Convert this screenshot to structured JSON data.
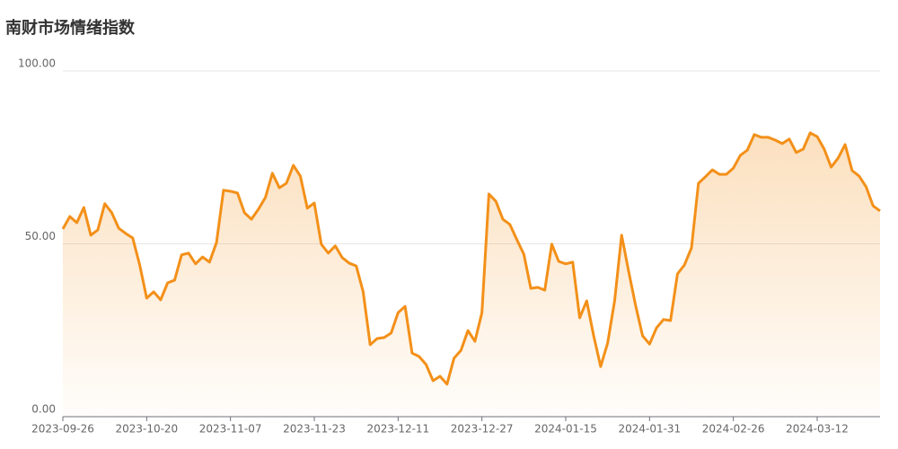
{
  "chart_data": {
    "type": "line",
    "title": "南财市场情绪指数",
    "categories": [
      "2023-09-26",
      null,
      null,
      null,
      null,
      null,
      null,
      null,
      null,
      null,
      null,
      null,
      "2023-10-20",
      null,
      null,
      null,
      null,
      null,
      null,
      null,
      null,
      null,
      null,
      null,
      "2023-11-07",
      null,
      null,
      null,
      null,
      null,
      null,
      null,
      null,
      null,
      null,
      null,
      "2023-11-23",
      null,
      null,
      null,
      null,
      null,
      null,
      null,
      null,
      null,
      null,
      null,
      "2023-12-11",
      null,
      null,
      null,
      null,
      null,
      null,
      null,
      null,
      null,
      null,
      null,
      "2023-12-27",
      null,
      null,
      null,
      null,
      null,
      null,
      null,
      null,
      null,
      null,
      null,
      "2024-01-15",
      null,
      null,
      null,
      null,
      null,
      null,
      null,
      null,
      null,
      null,
      null,
      "2024-01-31",
      null,
      null,
      null,
      null,
      null,
      null,
      null,
      null,
      null,
      null,
      null,
      "2024-02-26",
      null,
      null,
      null,
      null,
      null,
      null,
      null,
      null,
      null,
      null,
      null,
      "2024-03-12",
      null,
      null,
      null,
      null,
      null,
      null,
      null,
      null,
      null
    ],
    "series": [
      {
        "name": "南财市场情绪指数",
        "color": "#f39019",
        "values": [
          54.3,
          57.9,
          56.1,
          60.5,
          52.5,
          54.0,
          61.6,
          59.0,
          54.5,
          53.0,
          51.7,
          43.9,
          34.3,
          36.1,
          33.8,
          38.7,
          39.5,
          46.8,
          47.3,
          44.2,
          46.2,
          44.7,
          50.4,
          65.5,
          65.2,
          64.7,
          59.0,
          57.1,
          60.0,
          63.4,
          70.4,
          66.2,
          67.5,
          72.7,
          69.6,
          60.3,
          61.8,
          49.9,
          47.3,
          49.4,
          46.0,
          44.4,
          43.6,
          36.1,
          20.8,
          22.6,
          22.9,
          24.2,
          30.1,
          31.9,
          18.4,
          17.4,
          15.1,
          10.4,
          11.7,
          9.4,
          16.9,
          19.2,
          24.9,
          21.8,
          30.1,
          64.4,
          62.3,
          57.1,
          55.6,
          51.2,
          47.0,
          37.1,
          37.4,
          36.6,
          49.9,
          44.9,
          44.2,
          44.7,
          28.6,
          33.5,
          23.4,
          14.5,
          21.3,
          33.5,
          52.5,
          42.1,
          32.2,
          23.4,
          21.0,
          25.7,
          28.1,
          27.8,
          41.3,
          43.9,
          48.8,
          67.5,
          69.4,
          71.4,
          70.1,
          70.1,
          71.9,
          75.6,
          77.1,
          81.6,
          80.8,
          80.8,
          80.0,
          79.0,
          80.3,
          76.4,
          77.4,
          82.1,
          81.0,
          77.4,
          72.2,
          74.8,
          78.7,
          71.2,
          69.6,
          66.5,
          61.0,
          59.5
        ]
      }
    ],
    "ylim": [
      0,
      100
    ],
    "yticks": [
      {
        "value": 0,
        "label": "0.00"
      },
      {
        "value": 50,
        "label": "50.00"
      },
      {
        "value": 100,
        "label": "100.00"
      }
    ],
    "grid": true
  }
}
